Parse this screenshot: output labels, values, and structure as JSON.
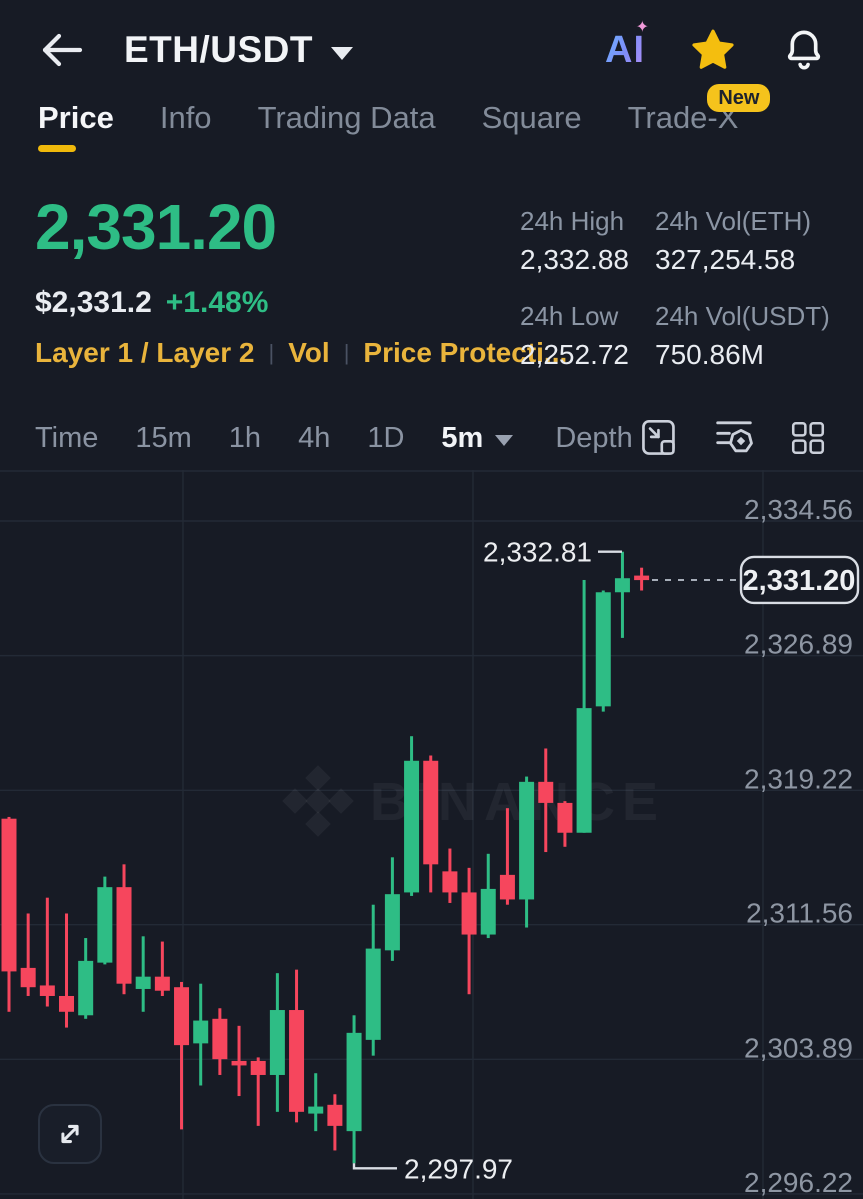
{
  "colors": {
    "green": "#2EBD85",
    "red": "#F6465D",
    "yellow": "#F0B90B",
    "bg": "#171B25",
    "text": "#EAECEF",
    "muted": "#848E9C"
  },
  "header": {
    "title": "ETH/USDT",
    "ai_label": "AI"
  },
  "tabs": {
    "items": [
      {
        "label": "Price",
        "active": true
      },
      {
        "label": "Info",
        "active": false
      },
      {
        "label": "Trading Data",
        "active": false
      },
      {
        "label": "Square",
        "active": false
      },
      {
        "label": "Trade-X",
        "active": false,
        "badge": "New"
      }
    ]
  },
  "price_panel": {
    "last_price": "2,331.20",
    "fiat_price": "$2,331.2",
    "change_pct": "+1.48%",
    "tags": [
      "Layer 1 / Layer 2",
      "Vol",
      "Price Protecti..."
    ]
  },
  "stats": {
    "items": [
      {
        "label": "24h High",
        "value": "2,332.88"
      },
      {
        "label": "24h Vol(ETH)",
        "value": "327,254.58"
      },
      {
        "label": "24h Low",
        "value": "2,252.72"
      },
      {
        "label": "24h Vol(USDT)",
        "value": "750.86M"
      }
    ]
  },
  "toolbar": {
    "intervals": [
      "Time",
      "15m",
      "1h",
      "4h",
      "1D"
    ],
    "selected_interval": "5m",
    "depth_label": "Depth"
  },
  "chart_data": {
    "type": "candlestick",
    "pair": "ETH/USDT",
    "interval": "5m",
    "ohlc_order": "o,h,l,c",
    "y_axis_labels": [
      "2,334.56",
      "2,326.89",
      "2,319.22",
      "2,311.56",
      "2,303.89",
      "2,296.22"
    ],
    "y_axis_values": [
      2334.56,
      2326.89,
      2319.22,
      2311.56,
      2303.89,
      2296.22
    ],
    "annotations": {
      "high_label": "2,332.81",
      "high_value": 2332.81,
      "low_label": "2,297.97",
      "low_value": 2297.97,
      "current_label": "2,331.20",
      "current_value": 2331.2
    },
    "watermark": "BINANCE",
    "candles": [
      [
        2317.6,
        2317.7,
        2306.6,
        2308.9
      ],
      [
        2309.1,
        2312.2,
        2307.5,
        2308.0
      ],
      [
        2308.1,
        2313.1,
        2306.9,
        2307.5
      ],
      [
        2307.5,
        2312.2,
        2305.7,
        2306.6
      ],
      [
        2306.4,
        2310.8,
        2306.2,
        2309.5
      ],
      [
        2309.4,
        2314.3,
        2309.3,
        2313.7
      ],
      [
        2313.7,
        2315.0,
        2307.6,
        2308.2
      ],
      [
        2307.9,
        2310.9,
        2306.6,
        2308.6
      ],
      [
        2308.6,
        2310.6,
        2307.5,
        2307.8
      ],
      [
        2308.0,
        2308.3,
        2299.9,
        2304.7
      ],
      [
        2304.8,
        2308.2,
        2302.4,
        2306.1
      ],
      [
        2306.2,
        2306.8,
        2303.0,
        2303.9
      ],
      [
        2303.8,
        2305.8,
        2301.8,
        2303.6
      ],
      [
        2303.8,
        2304.0,
        2300.1,
        2303.0
      ],
      [
        2303.0,
        2308.8,
        2300.9,
        2306.7
      ],
      [
        2306.7,
        2309.0,
        2300.3,
        2300.9
      ],
      [
        2300.8,
        2303.1,
        2299.8,
        2301.2
      ],
      [
        2301.3,
        2301.9,
        2298.7,
        2300.1
      ],
      [
        2299.8,
        2306.4,
        2297.97,
        2305.4
      ],
      [
        2305.0,
        2312.7,
        2304.1,
        2310.2
      ],
      [
        2310.1,
        2315.4,
        2309.5,
        2313.3
      ],
      [
        2313.4,
        2322.3,
        2313.2,
        2320.9
      ],
      [
        2320.9,
        2321.2,
        2313.4,
        2315.0
      ],
      [
        2314.6,
        2315.9,
        2312.8,
        2313.4
      ],
      [
        2313.4,
        2314.8,
        2307.6,
        2311.0
      ],
      [
        2311.0,
        2315.6,
        2310.8,
        2313.6
      ],
      [
        2314.4,
        2318.2,
        2312.7,
        2313.0
      ],
      [
        2313.0,
        2320.0,
        2311.4,
        2319.7
      ],
      [
        2319.7,
        2321.6,
        2315.7,
        2318.5
      ],
      [
        2318.5,
        2318.6,
        2316.0,
        2316.8
      ],
      [
        2316.8,
        2331.2,
        2316.8,
        2323.9
      ],
      [
        2324.0,
        2330.6,
        2323.7,
        2330.5
      ],
      [
        2330.5,
        2332.81,
        2327.9,
        2331.3
      ],
      [
        2331.45,
        2331.9,
        2330.6,
        2331.2
      ]
    ]
  }
}
